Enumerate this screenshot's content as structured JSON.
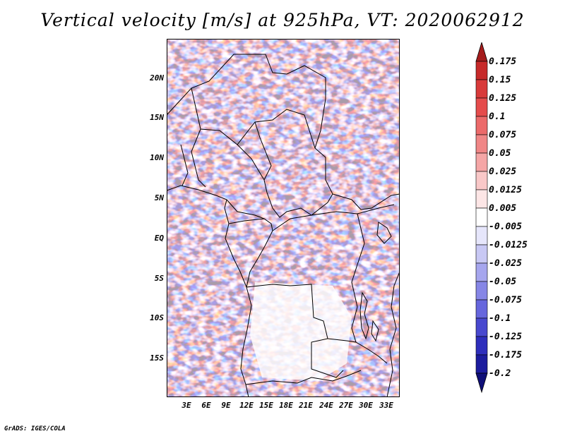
{
  "title": "Vertical velocity [m/s] at 925hPa, VT: 2020062912",
  "lat_labels": [
    "20N",
    "15N",
    "10N",
    "5N",
    "EQ",
    "5S",
    "10S",
    "15S"
  ],
  "lon_labels": [
    "3E",
    "6E",
    "9E",
    "12E",
    "15E",
    "18E",
    "21E",
    "24E",
    "27E",
    "30E",
    "33E"
  ],
  "colorbar": {
    "levels": [
      "0.175",
      "0.15",
      "0.125",
      "0.1",
      "0.075",
      "0.05",
      "0.025",
      "0.0125",
      "0.005",
      "-0.005",
      "-0.0125",
      "-0.025",
      "-0.05",
      "-0.075",
      "-0.1",
      "-0.125",
      "-0.175",
      "-0.2"
    ],
    "colors": [
      "#a51c1c",
      "#c72a2a",
      "#d83a3a",
      "#e54c4c",
      "#ec6a6a",
      "#f08686",
      "#f5a6a6",
      "#f9c8c8",
      "#fde6e6",
      "#ffffff",
      "#e6e6fb",
      "#c8c8f4",
      "#a6a6ee",
      "#8686e6",
      "#6666dd",
      "#4848cf",
      "#2e2ebc",
      "#1c1c9e",
      "#0f0f78"
    ]
  },
  "footer": "GrADS: IGES/COLA"
}
